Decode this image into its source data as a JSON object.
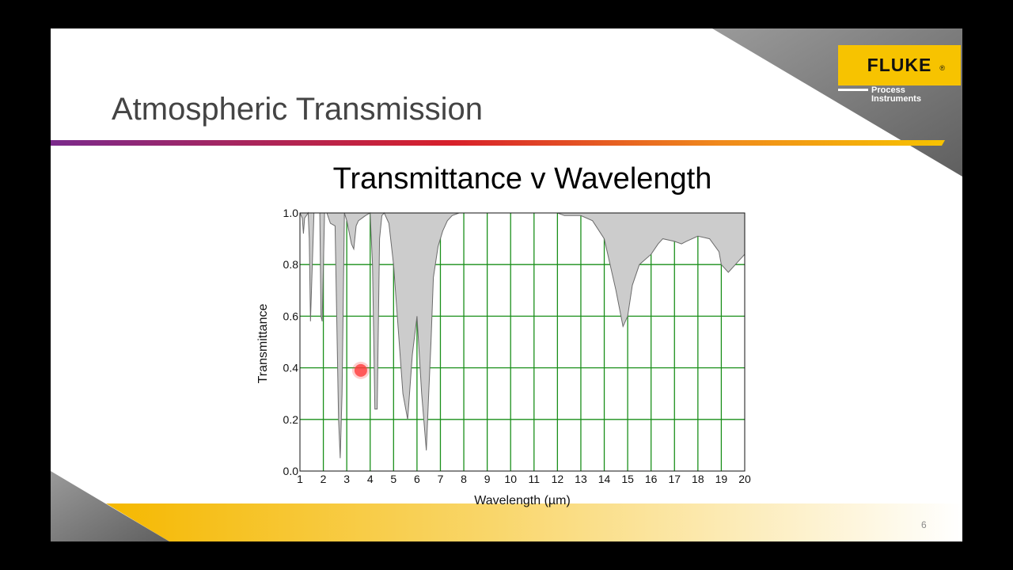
{
  "slide": {
    "title": "Atmospheric Transmission",
    "page_number": "6"
  },
  "logo": {
    "word": "FLUKE",
    "registered": "®",
    "sub_line1": "Process",
    "sub_line2": "Instruments"
  },
  "colors": {
    "accent_yellow": "#f7c300",
    "grid_green": "#1a8f1a",
    "fill_gray": "#cccccc",
    "marker_red": "#ff3b3b"
  },
  "chart_data": {
    "type": "area",
    "title": "Transmittance v Wavelength",
    "xlabel": "Wavelength (µm)",
    "ylabel": "Transmittance",
    "xlim": [
      1,
      20
    ],
    "ylim": [
      0.0,
      1.0
    ],
    "grid": true,
    "legend": "none",
    "x_ticks": [
      1,
      2,
      3,
      4,
      5,
      6,
      7,
      8,
      9,
      10,
      11,
      12,
      13,
      14,
      15,
      16,
      17,
      18,
      19,
      20
    ],
    "y_ticks": [
      0.0,
      0.2,
      0.4,
      0.6,
      0.8,
      1.0
    ],
    "y_tick_labels": [
      "0.0",
      "0.2",
      "0.4",
      "0.6",
      "0.8",
      "1.0"
    ],
    "series": [
      {
        "x": [
          1.0,
          1.1,
          1.15,
          1.2,
          1.35,
          1.4,
          1.45,
          1.6,
          1.85,
          1.9,
          1.95,
          2.05,
          2.15,
          2.3,
          2.5,
          2.65,
          2.72,
          2.8,
          2.9,
          3.0,
          3.2,
          3.3,
          3.4,
          3.5,
          3.8,
          4.0,
          4.1,
          4.2,
          4.3,
          4.4,
          4.5,
          4.6,
          4.8,
          5.0,
          5.2,
          5.4,
          5.6,
          5.8,
          6.0,
          6.2,
          6.4,
          6.5,
          6.6,
          6.7,
          6.9,
          7.1,
          7.3,
          7.5,
          7.8,
          8.0,
          8.3,
          8.8,
          9.0,
          9.5,
          10.0,
          11.0,
          12.0,
          12.3,
          13.0,
          13.5,
          14.0,
          14.5,
          14.8,
          15.0,
          15.2,
          15.5,
          16.0,
          16.3,
          16.5,
          17.0,
          17.3,
          17.5,
          18.0,
          18.5,
          18.9,
          19.0,
          19.3,
          19.6,
          20.0
        ],
        "y": [
          1.0,
          0.98,
          0.92,
          0.98,
          1.0,
          0.9,
          0.58,
          1.0,
          1.0,
          0.6,
          0.58,
          1.0,
          1.0,
          0.96,
          0.95,
          0.2,
          0.05,
          0.3,
          1.0,
          0.97,
          0.88,
          0.86,
          0.95,
          0.97,
          0.99,
          1.0,
          0.8,
          0.24,
          0.24,
          0.9,
          0.99,
          1.0,
          0.96,
          0.8,
          0.55,
          0.3,
          0.2,
          0.45,
          0.6,
          0.3,
          0.08,
          0.3,
          0.5,
          0.75,
          0.87,
          0.93,
          0.97,
          0.99,
          1.0,
          1.0,
          1.0,
          1.0,
          1.0,
          1.0,
          1.0,
          1.0,
          1.0,
          0.99,
          0.99,
          0.97,
          0.9,
          0.7,
          0.56,
          0.6,
          0.72,
          0.8,
          0.84,
          0.88,
          0.9,
          0.89,
          0.88,
          0.89,
          0.91,
          0.9,
          0.85,
          0.8,
          0.77,
          0.8,
          0.84
        ]
      }
    ],
    "annotations": [
      {
        "type": "marker",
        "x": 3.6,
        "y": 0.39
      }
    ]
  }
}
